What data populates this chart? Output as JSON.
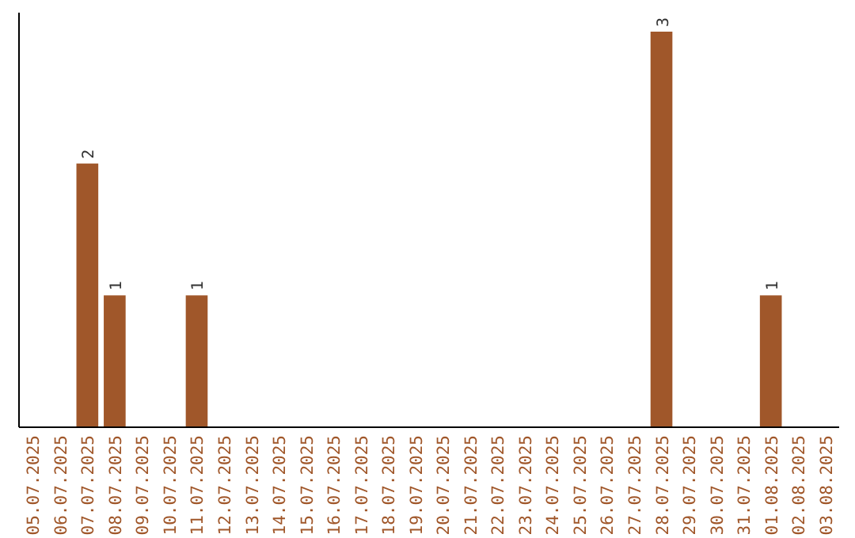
{
  "chart_data": {
    "type": "bar",
    "categories": [
      "05.07.2025",
      "06.07.2025",
      "07.07.2025",
      "08.07.2025",
      "09.07.2025",
      "10.07.2025",
      "11.07.2025",
      "12.07.2025",
      "13.07.2025",
      "14.07.2025",
      "15.07.2025",
      "16.07.2025",
      "17.07.2025",
      "18.07.2025",
      "19.07.2025",
      "20.07.2025",
      "21.07.2025",
      "22.07.2025",
      "23.07.2025",
      "24.07.2025",
      "25.07.2025",
      "26.07.2025",
      "27.07.2025",
      "28.07.2025",
      "29.07.2025",
      "30.07.2025",
      "31.07.2025",
      "01.08.2025",
      "02.08.2025",
      "03.08.2025"
    ],
    "values": [
      0,
      0,
      2,
      1,
      0,
      0,
      1,
      0,
      0,
      0,
      0,
      0,
      0,
      0,
      0,
      0,
      0,
      0,
      0,
      0,
      0,
      0,
      0,
      3,
      0,
      0,
      0,
      1,
      0,
      0
    ],
    "value_labels": [
      null,
      null,
      "2",
      "1",
      null,
      null,
      "1",
      null,
      null,
      null,
      null,
      null,
      null,
      null,
      null,
      null,
      null,
      null,
      null,
      null,
      null,
      null,
      null,
      "3",
      null,
      null,
      null,
      "1",
      null,
      null
    ],
    "color": "#a0572a"
  }
}
